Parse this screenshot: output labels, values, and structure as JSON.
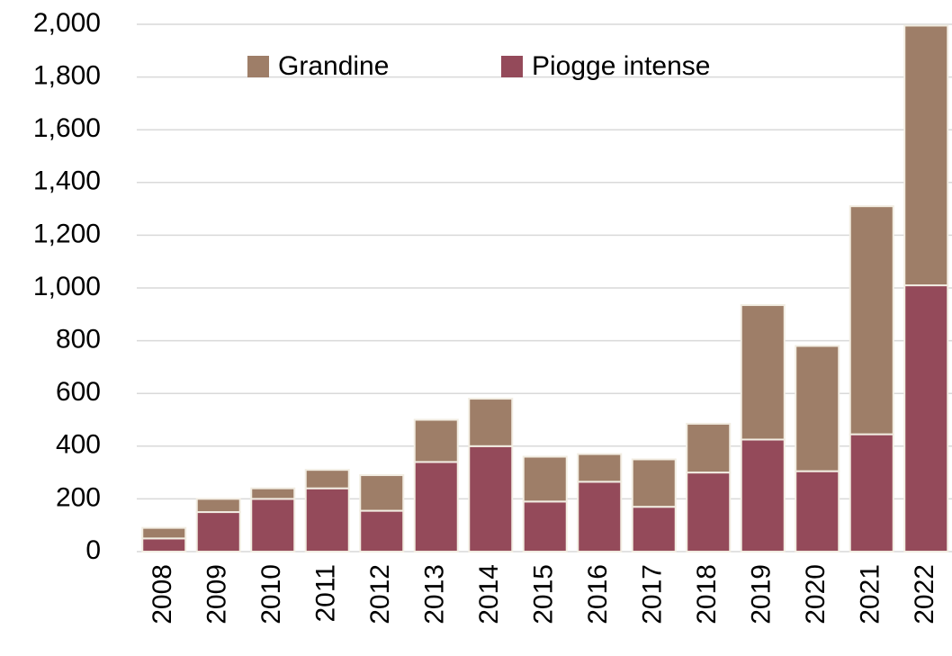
{
  "chart_data": {
    "type": "stacked_bar",
    "categories": [
      "2008",
      "2009",
      "2010",
      "2011",
      "2012",
      "2013",
      "2014",
      "2015",
      "2016",
      "2017",
      "2018",
      "2019",
      "2020",
      "2021",
      "2022"
    ],
    "series": [
      {
        "name": "Grandine",
        "color": "#9e7e68",
        "values": [
          40,
          50,
          40,
          70,
          135,
          160,
          180,
          170,
          105,
          180,
          185,
          510,
          475,
          865,
          985
        ]
      },
      {
        "name": "Piogge intense",
        "color": "#944a5a",
        "values": [
          50,
          150,
          200,
          240,
          155,
          340,
          400,
          190,
          265,
          170,
          300,
          425,
          305,
          445,
          1010
        ]
      }
    ],
    "ylim": [
      0,
      2000
    ],
    "yticks": [
      0,
      200,
      400,
      600,
      800,
      {
        "value": 1000,
        "label": "1,000"
      },
      {
        "value": 1200,
        "label": "1,200"
      },
      {
        "value": 1400,
        "label": "1,400"
      },
      {
        "value": 1600,
        "label": "1,600"
      },
      {
        "value": 1800,
        "label": "1,800"
      },
      {
        "value": 2000,
        "label": "2,000"
      }
    ],
    "grid": true,
    "legend": "top"
  }
}
